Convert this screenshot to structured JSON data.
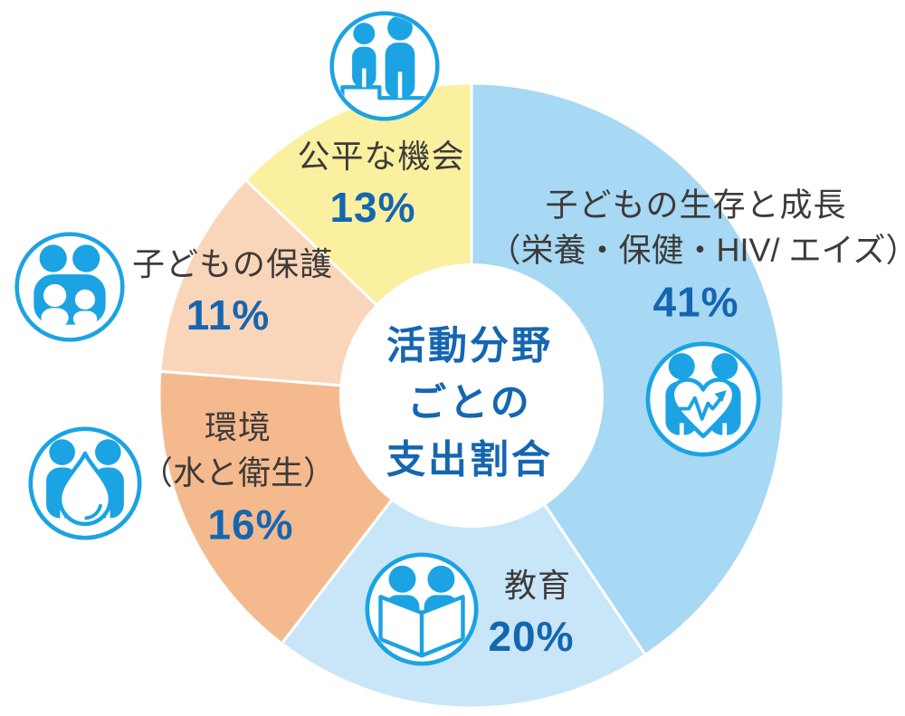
{
  "colors": {
    "background": "#FFFFFF",
    "accent_blue": "#1566B1",
    "icon_blue": "#1BA3E3",
    "label_dark": "#3E3A39",
    "segment_separator": "#FFFFFF"
  },
  "chart_data": {
    "type": "pie",
    "donut": true,
    "title": "活動分野ごとの支出割合",
    "title_lines": [
      "活動分野",
      "ごとの",
      "支出割合"
    ],
    "unit": "%",
    "legend_position": "labels-on-segments",
    "start_angle_deg": 0,
    "direction": "clockwise",
    "segments": [
      {
        "name": "子どもの生存と成長",
        "sub": "（栄養・保健・HIV/ エイズ）",
        "value": 41,
        "pct_label": "41%",
        "color": "#A7D8F4",
        "icon": "people-heart-pulse-icon"
      },
      {
        "name": "教育",
        "value": 20,
        "pct_label": "20%",
        "color": "#C9E6F8",
        "icon": "people-reading-book-icon"
      },
      {
        "name": "環境",
        "sub": "（水と衛生）",
        "value": 16,
        "pct_label": "16%",
        "color": "#F4BA8E",
        "icon": "people-water-drop-icon"
      },
      {
        "name": "子どもの保護",
        "value": 11,
        "pct_label": "11%",
        "color": "#F9D5B9",
        "icon": "family-parents-children-icon"
      },
      {
        "name": "公平な機会",
        "value": 13,
        "pct_label": "13%",
        "color": "#FAF0A0",
        "icon": "people-on-podium-icon"
      }
    ]
  }
}
